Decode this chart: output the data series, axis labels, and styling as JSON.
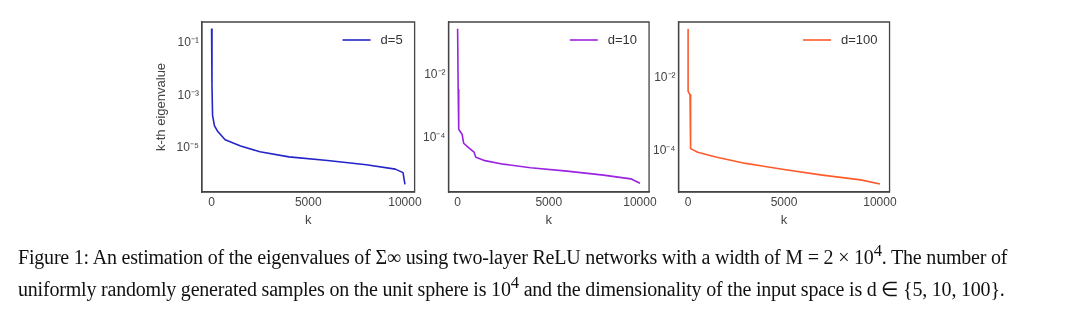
{
  "chart_data": [
    {
      "type": "line",
      "ylabel": "k-th eigenvalue",
      "xlabel": "k",
      "log": "y",
      "legend": "top right",
      "grid": false,
      "marker": "none",
      "line_style": "solid",
      "xlim": [
        -500,
        10500
      ],
      "xticks": [
        0,
        5000,
        10000
      ],
      "ylim": [
        2e-07,
        0.63
      ],
      "yticks": [
        {
          "value": 0.1,
          "label": "10⁻¹"
        },
        {
          "value": 0.001,
          "label": "10⁻³"
        },
        {
          "value": 1e-05,
          "label": "10⁻⁵"
        }
      ],
      "series": [
        {
          "name": "d=5",
          "color": "#2424c8",
          "x": [
            0,
            20,
            50,
            150,
            300,
            700,
            1500,
            2500,
            4000,
            6000,
            8000,
            9500,
            9900,
            10000
          ],
          "values": [
            0.34,
            0.0026,
            0.00017,
            6.8e-05,
            4.3e-05,
            2e-05,
            1.15e-05,
            6.9e-06,
            4.4e-06,
            3.2e-06,
            2.2e-06,
            1.5e-06,
            1.1e-06,
            3.9e-07
          ]
        }
      ]
    },
    {
      "type": "line",
      "xlabel": "k",
      "log": "y",
      "legend": "top right",
      "grid": false,
      "marker": "none",
      "line_style": "solid",
      "xlim": [
        -500,
        10500
      ],
      "xticks": [
        0,
        5000,
        10000
      ],
      "ylim": [
        2e-06,
        0.46
      ],
      "yticks": [
        {
          "value": 0.01,
          "label": "10⁻²"
        },
        {
          "value": 0.0001,
          "label": "10⁻⁴"
        }
      ],
      "series": [
        {
          "name": "d=10",
          "color": "#9b22e0",
          "x": [
            0,
            30,
            60,
            250,
            330,
            600,
            900,
            1000,
            1500,
            2500,
            4000,
            6000,
            8000,
            9500,
            10000
          ],
          "values": [
            0.28,
            0.0034,
            0.00019,
            0.00013,
            6.9e-05,
            5e-05,
            3.6e-05,
            2.5e-05,
            1.95e-05,
            1.51e-05,
            1.17e-05,
            9.1e-06,
            6.8e-06,
            5.2e-06,
            3.8e-06
          ]
        }
      ]
    },
    {
      "type": "line",
      "xlabel": "k",
      "log": "y",
      "legend": "top right",
      "grid": false,
      "marker": "none",
      "line_style": "solid",
      "xlim": [
        -500,
        10500
      ],
      "xticks": [
        0,
        5000,
        10000
      ],
      "ylim": [
        7.2e-06,
        0.34
      ],
      "yticks": [
        {
          "value": 0.01,
          "label": "10⁻²"
        },
        {
          "value": 0.0001,
          "label": "10⁻⁴"
        }
      ],
      "series": [
        {
          "name": "d=100",
          "color": "#ff5a2a",
          "x": [
            0,
            0,
            100,
            130,
            500,
            1500,
            3000,
            5000,
            7000,
            9000,
            10000
          ],
          "values": [
            0.21,
            0.0042,
            0.0034,
            0.000112,
            8.9e-05,
            6.5e-05,
            4.4e-05,
            3e-05,
            2.1e-05,
            1.55e-05,
            1.2e-05
          ]
        }
      ],
      "annotations": [
        "Figure 1: An estimation of the eigenvalues of Σ∞ using two-layer ReLU networks with a width of M = 2 × 10$^{4}$. The number of uniformly randomly generated samples on the unit sphere is 10$^{4}$ and the dimensionality of the input space is d ∈ {5, 10, 100}."
      ]
    }
  ]
}
